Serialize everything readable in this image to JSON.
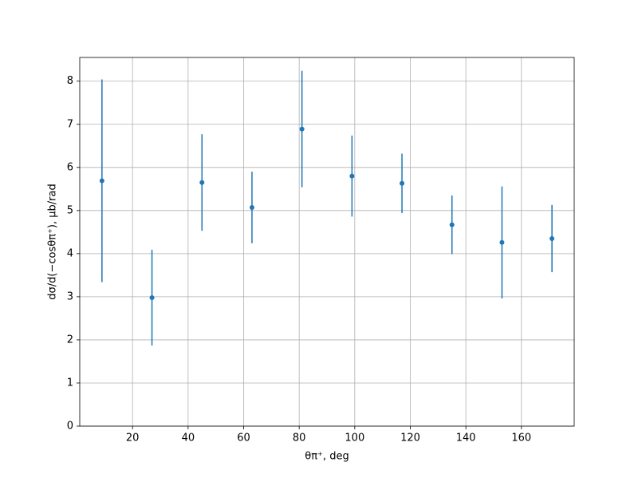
{
  "chart_data": {
    "type": "errorbar",
    "xlabel": "θπ⁺, deg",
    "ylabel": "dσ/d(−cosθπ⁺), μb/rad",
    "x": [
      9,
      27,
      45,
      63,
      81,
      99,
      117,
      135,
      153,
      171
    ],
    "values": [
      5.69,
      2.98,
      5.65,
      5.07,
      6.89,
      5.8,
      5.63,
      4.67,
      4.26,
      4.35
    ],
    "errors": [
      2.35,
      1.11,
      1.12,
      0.83,
      1.35,
      0.94,
      0.69,
      0.68,
      1.3,
      0.78
    ],
    "color": "#1f77b4",
    "xlim": [
      1,
      179
    ],
    "xticks": [
      20,
      40,
      60,
      80,
      100,
      120,
      140,
      160
    ],
    "ylim": [
      0,
      8.55
    ],
    "yticks": [
      0,
      1,
      2,
      3,
      4,
      5,
      6,
      7,
      8
    ],
    "grid": true
  }
}
